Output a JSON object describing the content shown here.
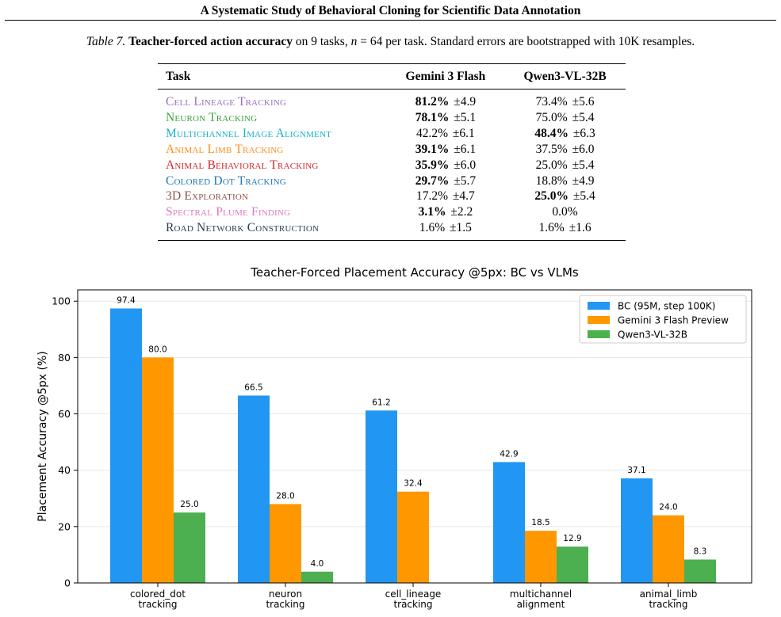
{
  "header": {
    "running_title": "A Systematic Study of Behavioral Cloning for Scientific Data Annotation"
  },
  "caption": {
    "label": "Table 7.",
    "bold_part": "Teacher-forced action accuracy",
    "text_a": " on 9 tasks, ",
    "math_n": "n",
    "text_b": " = 64 per task. Standard errors are bootstrapped with 10K resamples."
  },
  "table": {
    "columns": [
      "Task",
      "Gemini 3 Flash",
      "Qwen3-VL-32B"
    ],
    "rows": [
      {
        "task": "Cell Lineage Tracking",
        "color": "#9b6fc0",
        "gemini": "81.2%",
        "gemini_err": "±4.9",
        "gemini_best": true,
        "qwen": "73.4%",
        "qwen_err": "±5.6",
        "qwen_best": false
      },
      {
        "task": "Neuron Tracking",
        "color": "#3aa23a",
        "gemini": "78.1%",
        "gemini_err": "±5.1",
        "gemini_best": true,
        "qwen": "75.0%",
        "qwen_err": "±5.4",
        "qwen_best": false
      },
      {
        "task": "Multichannel Image Alignment",
        "color": "#17b3c8",
        "gemini": "42.2%",
        "gemini_err": "±6.1",
        "gemini_best": false,
        "qwen": "48.4%",
        "qwen_err": "±6.3",
        "qwen_best": true
      },
      {
        "task": "Animal Limb Tracking",
        "color": "#ff8c1a",
        "gemini": "39.1%",
        "gemini_err": "±6.1",
        "gemini_best": true,
        "qwen": "37.5%",
        "qwen_err": "±6.0",
        "qwen_best": false
      },
      {
        "task": "Animal Behavioral Tracking",
        "color": "#d62728",
        "gemini": "35.9%",
        "gemini_err": "±6.0",
        "gemini_best": true,
        "qwen": "25.0%",
        "qwen_err": "±5.4",
        "qwen_best": false
      },
      {
        "task": "Colored Dot Tracking",
        "color": "#1f77b4",
        "gemini": "29.7%",
        "gemini_err": "±5.7",
        "gemini_best": true,
        "qwen": "18.8%",
        "qwen_err": "±4.9",
        "qwen_best": false
      },
      {
        "task": "3D Exploration",
        "color": "#8c564b",
        "gemini": "17.2%",
        "gemini_err": "±4.7",
        "gemini_best": false,
        "qwen": "25.0%",
        "qwen_err": "±5.4",
        "qwen_best": true
      },
      {
        "task": "Spectral Plume Finding",
        "color": "#e377c2",
        "gemini": "3.1%",
        "gemini_err": "±2.2",
        "gemini_best": true,
        "qwen": "0.0%",
        "qwen_err": "",
        "qwen_best": false
      },
      {
        "task": "Road Network Construction",
        "color": "#2c3e50",
        "gemini": "1.6%",
        "gemini_err": "±1.5",
        "gemini_best": false,
        "qwen": "1.6%",
        "qwen_err": "±1.6",
        "qwen_best": false
      }
    ]
  },
  "chart_data": {
    "type": "bar",
    "title": "Teacher-Forced Placement Accuracy @5px: BC vs VLMs",
    "ylabel": "Placement Accuracy @5px (%)",
    "xlabel": "",
    "categories": [
      [
        "colored_dot",
        "tracking"
      ],
      [
        "neuron",
        "tracking"
      ],
      [
        "cell_lineage",
        "tracking"
      ],
      [
        "multichannel",
        "alignment"
      ],
      [
        "animal_limb",
        "tracking"
      ]
    ],
    "series": [
      {
        "name": "BC (95M, step 100K)",
        "color": "#2196f3",
        "values": [
          97.4,
          66.5,
          61.2,
          42.9,
          37.1
        ]
      },
      {
        "name": "Gemini 3 Flash Preview",
        "color": "#ff9800",
        "values": [
          80.0,
          28.0,
          32.4,
          18.5,
          24.0
        ]
      },
      {
        "name": "Qwen3-VL-32B",
        "color": "#4caf50",
        "values": [
          25.0,
          4.0,
          null,
          12.9,
          8.3
        ]
      }
    ],
    "ylim": [
      0,
      104
    ],
    "yticks": [
      0,
      20,
      40,
      60,
      80,
      100
    ],
    "grid": "horizontal",
    "legend": "top-right"
  }
}
